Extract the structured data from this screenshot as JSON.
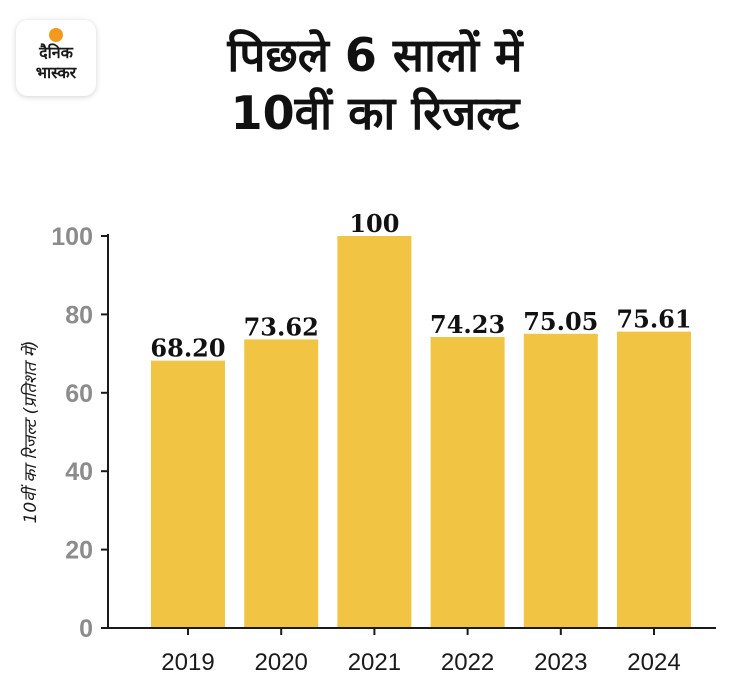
{
  "brand": {
    "line1": "दैनिक",
    "line2": "भास्कर",
    "dot_color": "#f39a1e"
  },
  "header": {
    "title_line1": "पिछले 6 सालों में",
    "title_line2": "10वीं का रिजल्ट"
  },
  "colors": {
    "bar": "#f2c443",
    "axis": "#1a1a1a",
    "tick_label": "#8c8c8c",
    "year_label": "#1a1a1a",
    "value_label": "#111111"
  },
  "chart_data": {
    "type": "bar",
    "title": "पिछले 6 सालों में 10वीं का रिजल्ट",
    "xlabel": "",
    "ylabel": "10वीं का रिजल्ट (प्रतिशत में)",
    "categories": [
      "2019",
      "2020",
      "2021",
      "2022",
      "2023",
      "2024"
    ],
    "values": [
      68.2,
      73.62,
      100,
      74.23,
      75.05,
      75.61
    ],
    "value_labels": [
      "68.20",
      "73.62",
      "100",
      "74.23",
      "75.05",
      "75.61"
    ],
    "ylim": [
      0,
      100
    ],
    "yticks": [
      0,
      20,
      40,
      60,
      80,
      100
    ],
    "grid": false,
    "legend": "none"
  }
}
